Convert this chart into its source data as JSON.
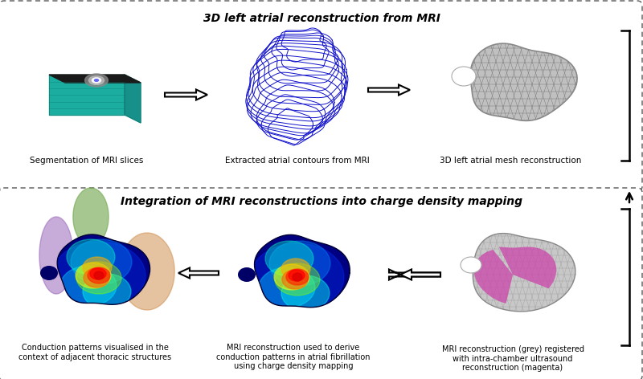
{
  "bg_color": "#ffffff",
  "top_title": "3D left atrial reconstruction from MRI",
  "bottom_title": "Integration of MRI reconstructions into charge density mapping",
  "border_color": "#666666",
  "label1": "Segmentation of MRI slices",
  "label2": "Extracted atrial contours from MRI",
  "label3": "3D left atrial mesh reconstruction",
  "label4": "Conduction patterns visualised in the\ncontext of adjacent thoracic structures",
  "label5": "MRI reconstruction used to derive\nconduction patterns in atrial fibrillation\nusing charge density mapping",
  "label6": "MRI reconstruction (grey) registered\nwith intra-chamber ultrasound\nreconstruction (magenta)",
  "teal_color": "#1AADA0",
  "teal_dark": "#0D7A70",
  "teal_mid": "#18908A",
  "blue_contour": "#1010CC",
  "mesh_color": "#999999",
  "mesh_fill": "#C0C0C0",
  "magenta_color": "#CC44AA",
  "purple_color": "#9966BB",
  "green_color": "#77AA55",
  "orange_color": "#CC8844",
  "arrow_color": "#222222"
}
